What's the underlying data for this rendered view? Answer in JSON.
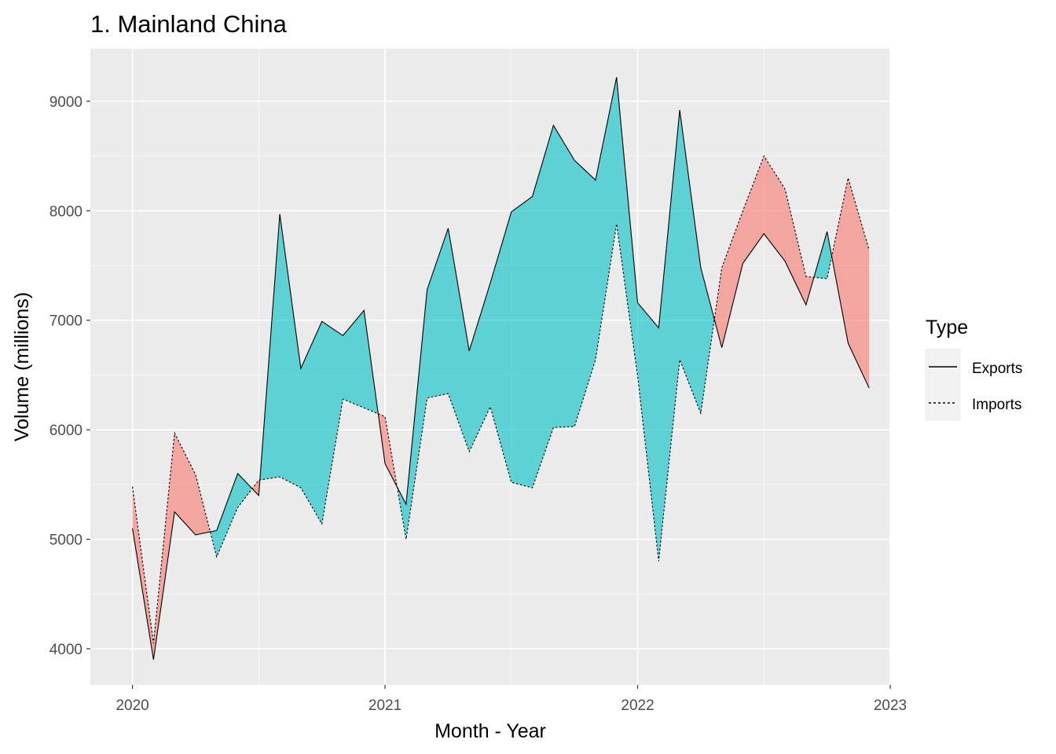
{
  "chart_data": {
    "type": "area",
    "title": "1. Mainland China",
    "xlabel": "Month - Year",
    "ylabel": "Volume (millions)",
    "x_ticks": [
      "2020",
      "2021",
      "2022",
      "2023"
    ],
    "y_ticks": [
      4000,
      5000,
      6000,
      7000,
      8000,
      9000
    ],
    "ylim": [
      3670,
      9480
    ],
    "xlim": [
      "2019-11",
      "2023-01"
    ],
    "grid": true,
    "legend": {
      "title": "Type",
      "position": "right",
      "entries": [
        {
          "label": "Exports",
          "linetype": "solid"
        },
        {
          "label": "Imports",
          "linetype": "dashed"
        }
      ]
    },
    "fill_colors": {
      "exports_higher": "#00bfc4",
      "imports_higher": "#f8766d"
    },
    "x": [
      "2020-01",
      "2020-02",
      "2020-03",
      "2020-04",
      "2020-05",
      "2020-06",
      "2020-07",
      "2020-08",
      "2020-09",
      "2020-10",
      "2020-11",
      "2020-12",
      "2021-01",
      "2021-02",
      "2021-03",
      "2021-04",
      "2021-05",
      "2021-06",
      "2021-07",
      "2021-08",
      "2021-09",
      "2021-10",
      "2021-11",
      "2021-12",
      "2022-01",
      "2022-02",
      "2022-03",
      "2022-04",
      "2022-05",
      "2022-06",
      "2022-07",
      "2022-08",
      "2022-09",
      "2022-10",
      "2022-11",
      "2022-12"
    ],
    "series": [
      {
        "name": "Exports",
        "values": [
          5100,
          3900,
          5250,
          5040,
          5080,
          5600,
          5400,
          7970,
          6560,
          6990,
          6860,
          7090,
          5690,
          5320,
          7280,
          7840,
          6720,
          7340,
          7990,
          8130,
          8780,
          8460,
          8280,
          9220,
          7160,
          6930,
          8920,
          7480,
          6750,
          7520,
          7790,
          7540,
          7140,
          7810,
          6790,
          6380
        ]
      },
      {
        "name": "Imports",
        "values": [
          5480,
          4050,
          5970,
          5590,
          4840,
          5290,
          5540,
          5570,
          5470,
          5140,
          6280,
          6200,
          6120,
          5000,
          6290,
          6330,
          5800,
          6210,
          5520,
          5470,
          6020,
          6030,
          6640,
          7880,
          6490,
          4800,
          6640,
          6150,
          7480,
          8000,
          8500,
          8200,
          7400,
          7380,
          8300,
          7640
        ]
      }
    ]
  }
}
